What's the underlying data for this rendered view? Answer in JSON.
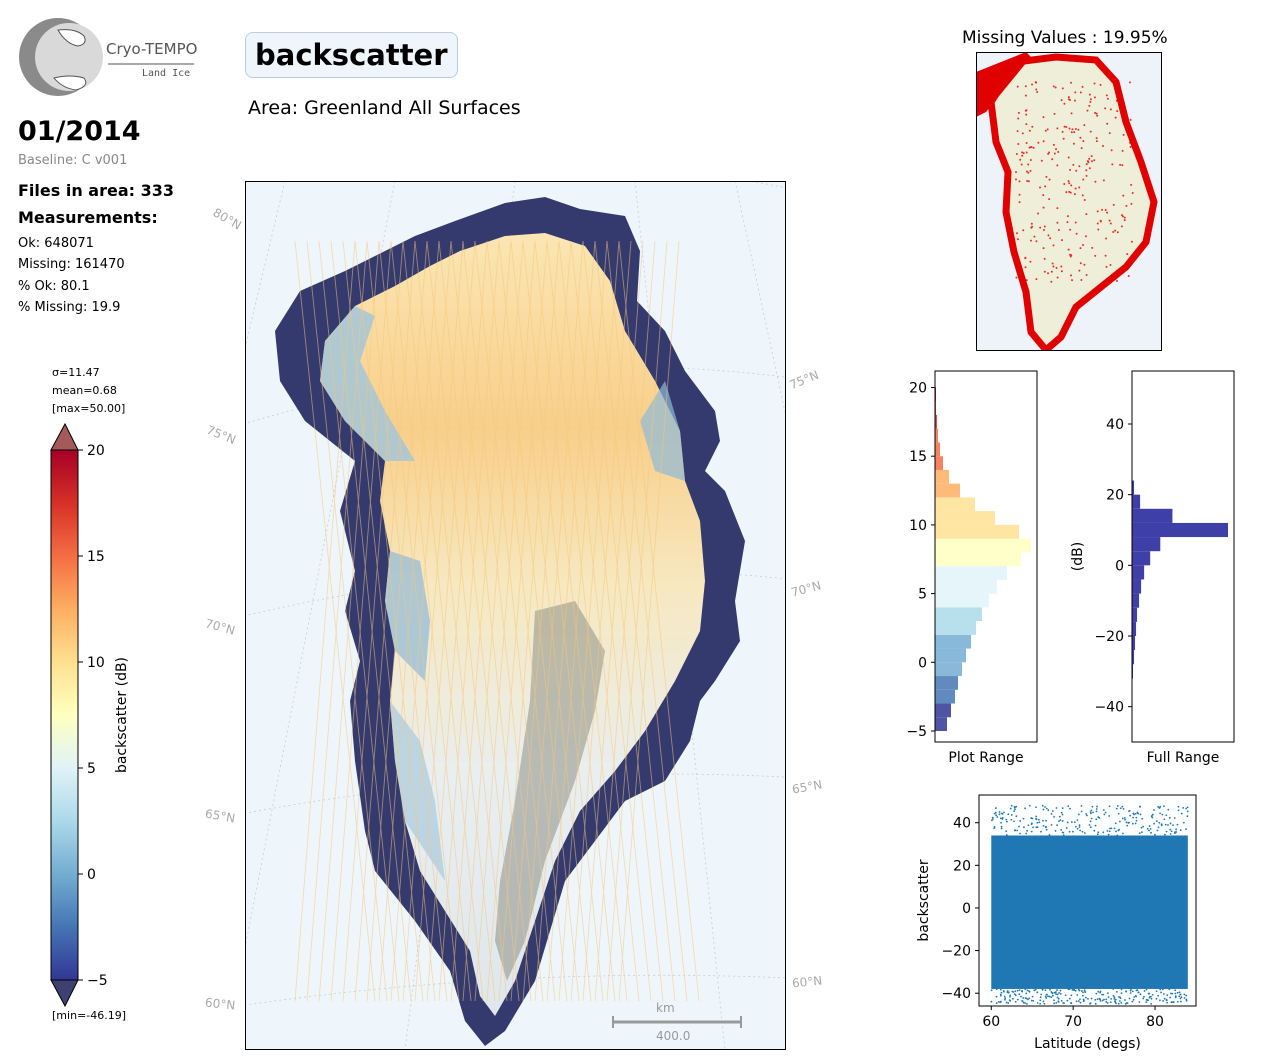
{
  "header": {
    "logo_line1": "Cryo-TEMPO",
    "logo_line2": "Land Ice",
    "title": "backscatter",
    "area": "Area: Greenland All Surfaces"
  },
  "info": {
    "date": "01/2014",
    "baseline": "Baseline: C v001",
    "files": "Files in area: 333",
    "measurements_heading": "Measurements:",
    "ok": "Ok: 648071",
    "missing": "Missing: 161470",
    "pct_ok": "% Ok: 80.1",
    "pct_missing": "% Missing: 19.9"
  },
  "colorbar": {
    "stat_sigma": "σ=11.47",
    "stat_mean": "mean=0.68",
    "stat_max": "[max=50.00]",
    "stat_min": "[min=-46.19]",
    "label": "backscatter (dB)",
    "ticks": [
      "20",
      "15",
      "10",
      "5",
      "0",
      "−5"
    ],
    "colors_top_to_bottom": [
      "#a50026",
      "#d73027",
      "#f46d43",
      "#fdae61",
      "#fee090",
      "#ffffbf",
      "#e0f3f8",
      "#abd9e9",
      "#74add1",
      "#4575b4",
      "#313695"
    ],
    "over_color": "#a45a5a",
    "under_color": "#3f3f70"
  },
  "map": {
    "lat_labels": [
      "80°N",
      "75°N",
      "75°N",
      "70°N",
      "70°N",
      "65°N",
      "65°N",
      "60°N",
      "60°N"
    ],
    "scale_unit": "km",
    "scale_value": "400.0",
    "background": "#eef6fc",
    "land_color": "#f0efe0",
    "missing_color": "#e00000"
  },
  "missing_panel": {
    "title": "Missing Values : 19.95%"
  },
  "chart_data": [
    {
      "type": "bar",
      "name": "plot-range-histogram",
      "orientation": "horizontal",
      "xlabel": "Plot Range",
      "ylim": [
        -5.8,
        21.2
      ],
      "yticks": [
        "20",
        "15",
        "10",
        "5",
        "0",
        "−5"
      ],
      "y": [
        -5,
        -4,
        -3,
        -2,
        -1,
        0,
        1,
        2,
        3,
        4,
        5,
        6,
        7,
        8,
        9,
        10,
        11,
        12,
        13,
        14,
        15,
        16,
        17,
        18,
        19,
        20
      ],
      "values": [
        12,
        16,
        20,
        23,
        27,
        31,
        36,
        41,
        47,
        54,
        62,
        72,
        86,
        96,
        84,
        60,
        40,
        25,
        14,
        8,
        5,
        3,
        2,
        1,
        1,
        0.5
      ]
    },
    {
      "type": "bar",
      "name": "full-range-histogram",
      "orientation": "horizontal",
      "xlabel": "Full Range",
      "ylabel": "(dB)",
      "ylim": [
        -50,
        55
      ],
      "yticks": [
        "40",
        "20",
        "0",
        "−20",
        "−40"
      ],
      "y": [
        -32,
        -28,
        -24,
        -20,
        -16,
        -12,
        -8,
        -4,
        0,
        4,
        8,
        12,
        16,
        20
      ],
      "values": [
        1,
        2,
        3,
        4,
        5,
        7,
        9,
        12,
        18,
        28,
        95,
        40,
        8,
        2
      ]
    },
    {
      "type": "scatter",
      "name": "backscatter-vs-latitude",
      "xlabel": "Latitude (degs)",
      "ylabel": "backscatter",
      "xlim": [
        58.5,
        85
      ],
      "ylim": [
        -46,
        53
      ],
      "xticks": [
        "60",
        "70",
        "80"
      ],
      "yticks": [
        "40",
        "20",
        "0",
        "−20",
        "−40"
      ],
      "color": "#1f77b4",
      "x_range": [
        60,
        84
      ],
      "y_band": [
        -38,
        34
      ]
    }
  ]
}
